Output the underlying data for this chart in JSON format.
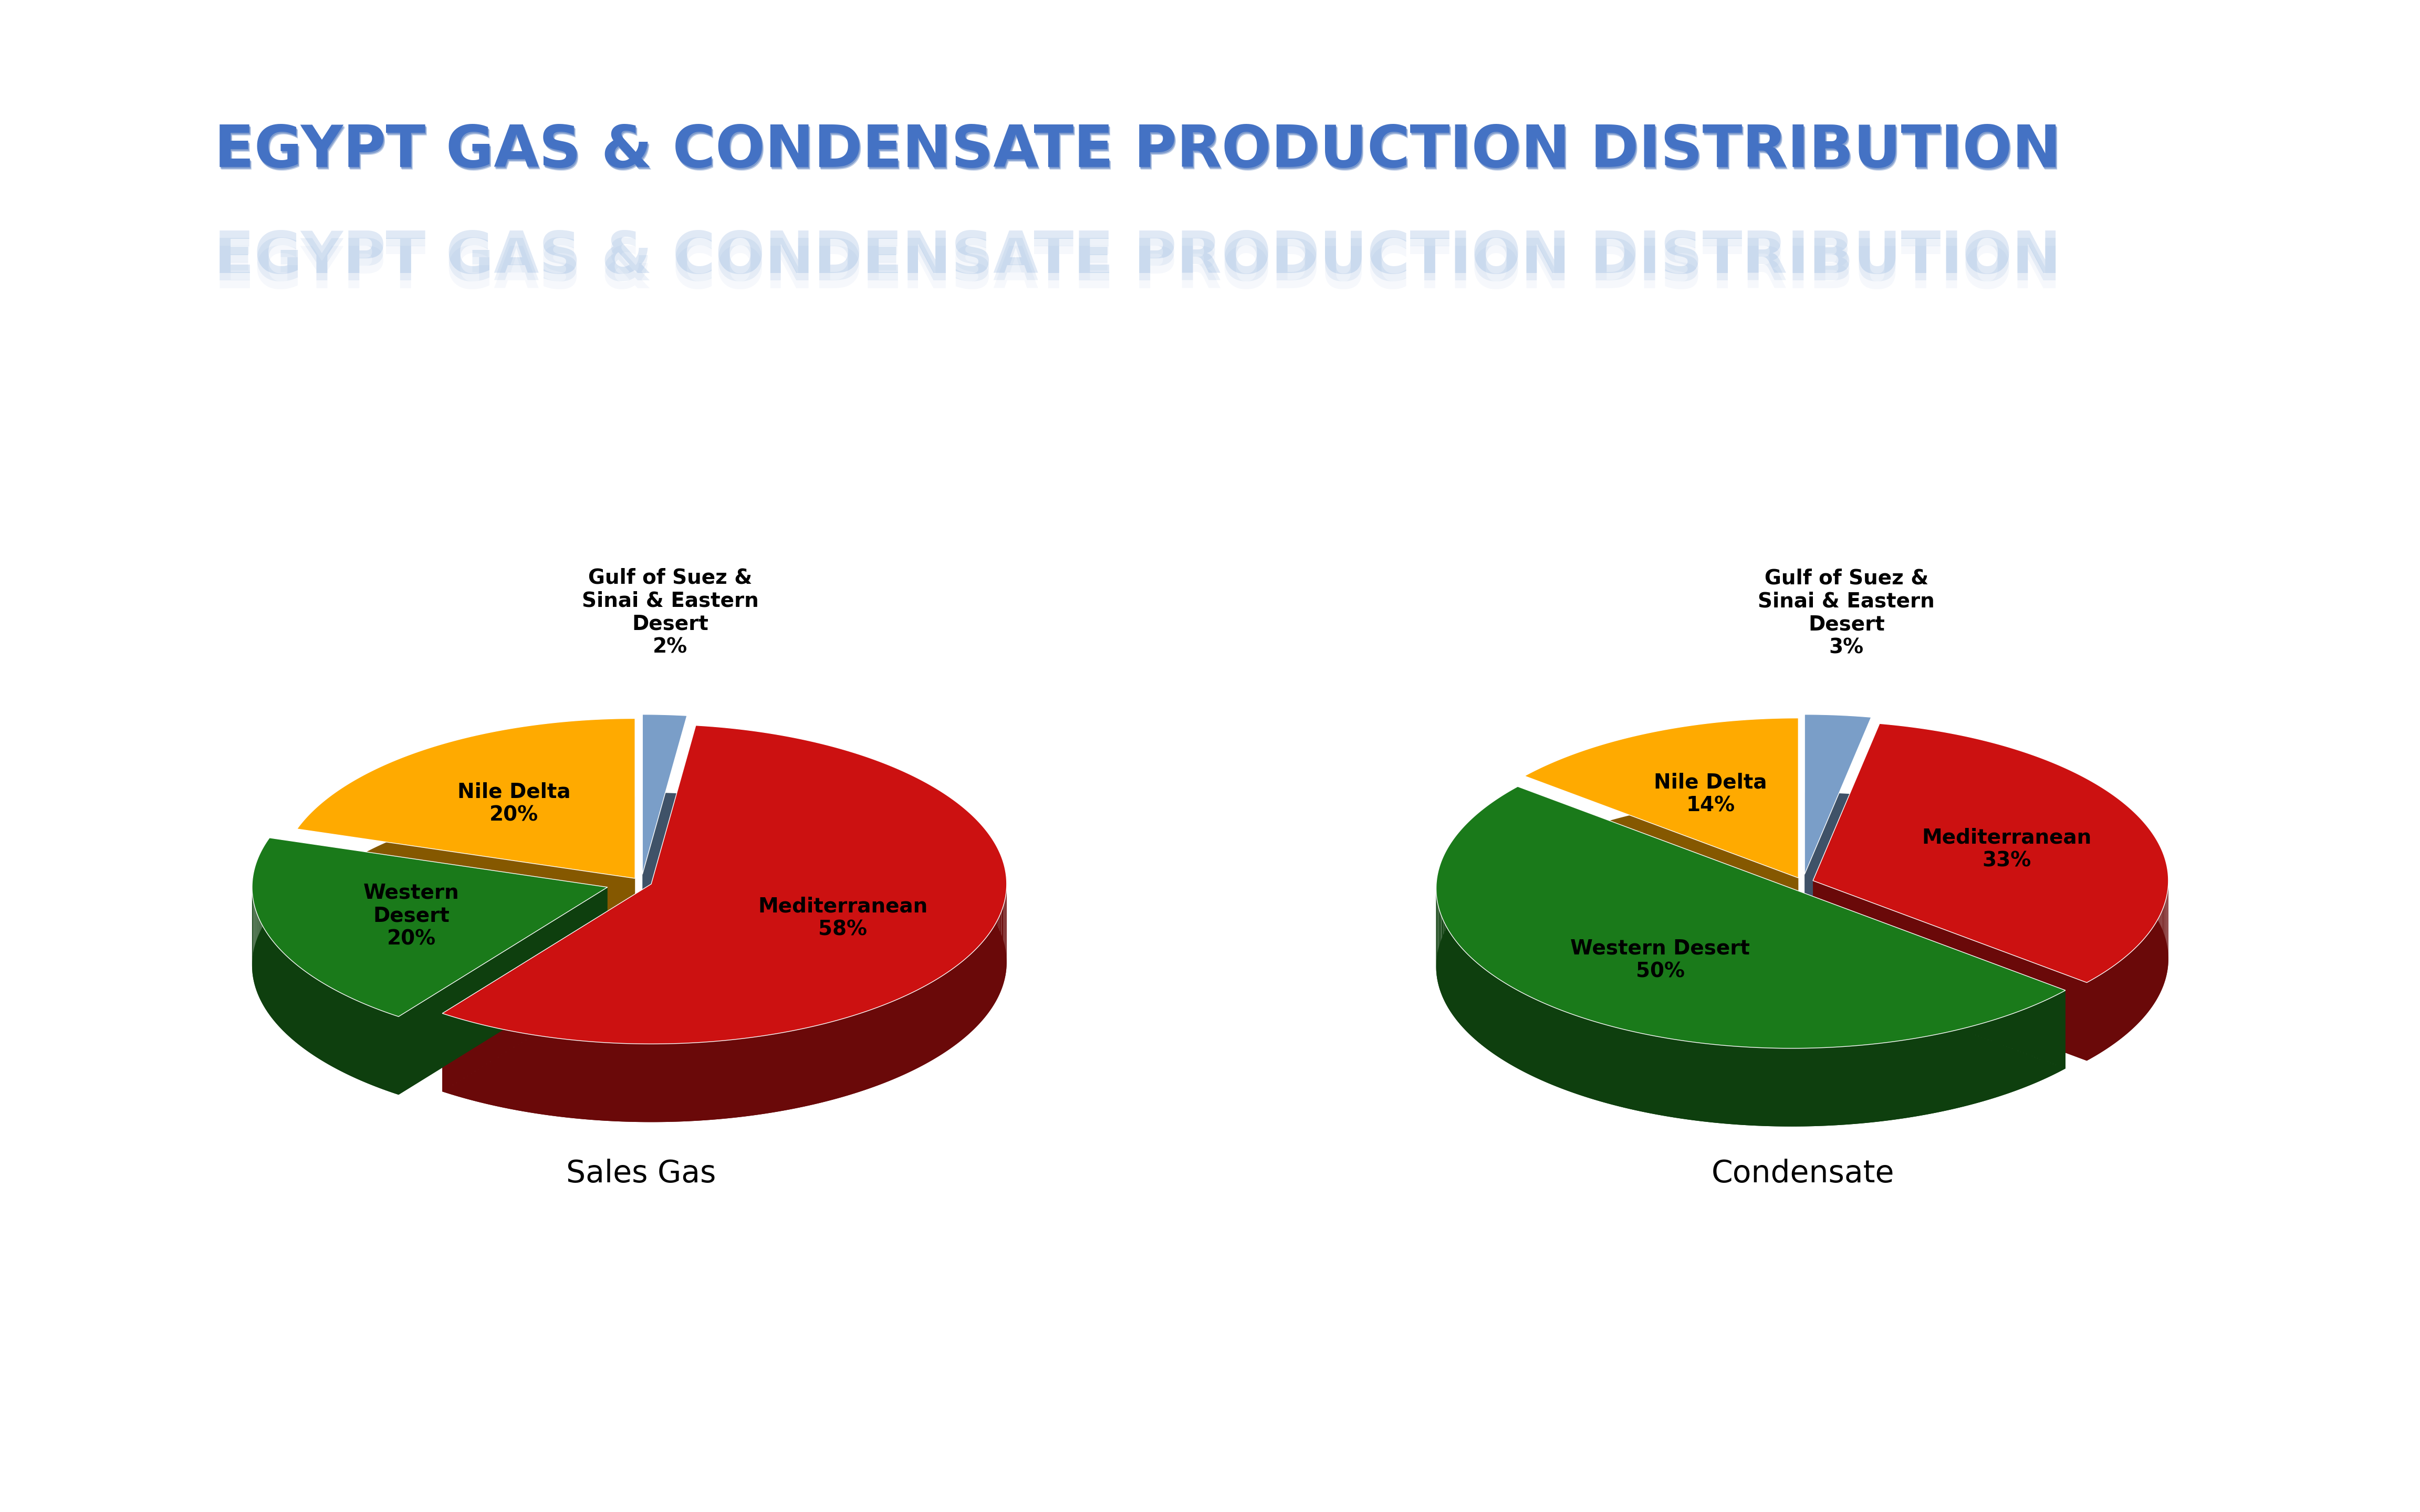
{
  "title": "EGYPT GAS & CONDENSATE PRODUCTION DISTRIBUTION",
  "title_color": "#4472C4",
  "background_color": "#FFFFFF",
  "sales_gas": {
    "labels": [
      "Gulf of Suez &\nSinai & Eastern\nDesert",
      "Mediterranean",
      "Western\nDesert",
      "Nile Delta"
    ],
    "values": [
      2,
      58,
      20,
      20
    ],
    "colors": [
      "#7A9EC8",
      "#CC1111",
      "#1A7A1A",
      "#FFAA00"
    ],
    "explode": [
      0.05,
      0.03,
      0.1,
      0.03
    ],
    "subtitle": "Sales Gas",
    "label_pct": [
      "2%",
      "58%",
      "20%",
      "20%"
    ],
    "label_inside": [
      false,
      true,
      true,
      true
    ]
  },
  "condensate": {
    "labels": [
      "Gulf of Suez &\nSinai & Eastern\nDesert",
      "Mediterranean",
      "Western Desert",
      "Nile Delta"
    ],
    "values": [
      3,
      33,
      50,
      14
    ],
    "colors": [
      "#7A9EC8",
      "#CC1111",
      "#1A7A1A",
      "#FFAA00"
    ],
    "explode": [
      0.05,
      0.03,
      0.05,
      0.03
    ],
    "subtitle": "Condensate",
    "label_pct": [
      "3%",
      "33%",
      "50%",
      "14%"
    ],
    "label_inside": [
      false,
      true,
      true,
      true
    ]
  },
  "start_angle": 90,
  "yscale": 0.45,
  "depth": 0.22,
  "subtitle_fontsize": 42,
  "label_fontsize": 28,
  "outside_label_fontsize": 28
}
